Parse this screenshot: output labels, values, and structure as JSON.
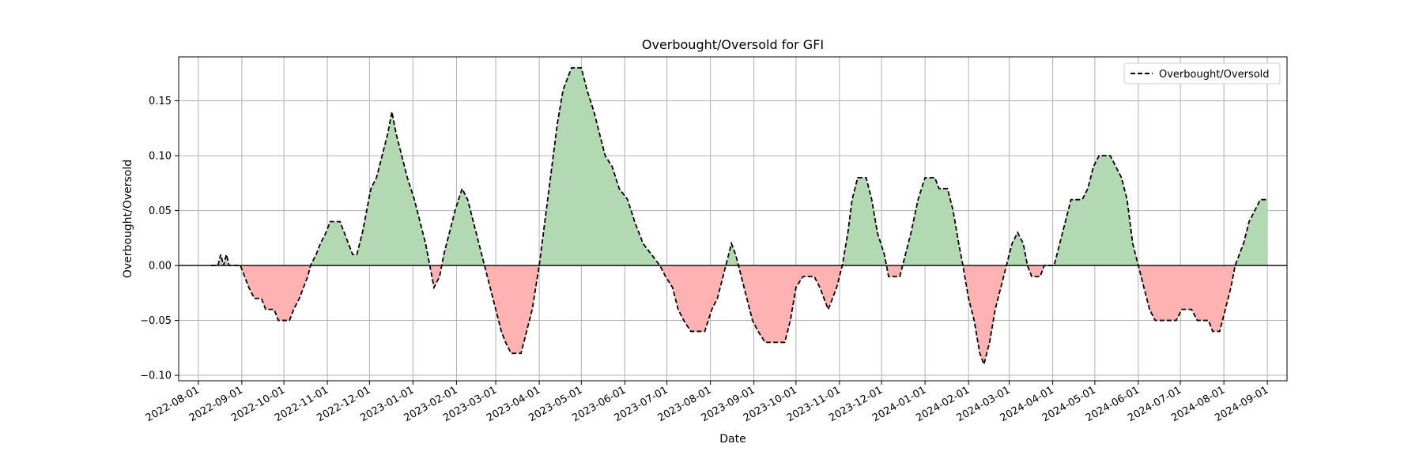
{
  "chart_data": {
    "type": "area",
    "title": "Overbought/Oversold for GFI",
    "xlabel": "Date",
    "ylabel": "Overbought/Oversold",
    "xlim": [
      "2022-07-18",
      "2024-09-15"
    ],
    "ylim": [
      -0.105,
      0.19
    ],
    "x_ticks": [
      "2022-08-01",
      "2022-09-01",
      "2022-10-01",
      "2022-11-01",
      "2022-12-01",
      "2023-01-01",
      "2023-02-01",
      "2023-03-01",
      "2023-04-01",
      "2023-05-01",
      "2023-06-01",
      "2023-07-01",
      "2023-08-01",
      "2023-09-01",
      "2023-10-01",
      "2023-11-01",
      "2023-12-01",
      "2024-01-01",
      "2024-02-01",
      "2024-03-01",
      "2024-04-01",
      "2024-05-01",
      "2024-06-01",
      "2024-07-01",
      "2024-08-01",
      "2024-09-01"
    ],
    "y_ticks": [
      -0.1,
      -0.05,
      0.0,
      0.05,
      0.1,
      0.15
    ],
    "y_tick_labels": [
      "−0.10",
      "−0.05",
      "0.00",
      "0.05",
      "0.10",
      "0.15"
    ],
    "grid": true,
    "legend": {
      "position": "top-right",
      "entries": [
        "Overbought/Oversold"
      ]
    },
    "colors": {
      "positive_fill": "#b2d9b2",
      "negative_fill": "#ffb2b2",
      "line": "#000000",
      "zero_line": "#000000",
      "grid": "#b0b0b0"
    },
    "series": [
      {
        "name": "Overbought/Oversold",
        "style": "dashed",
        "points": [
          [
            "2022-08-10",
            0.0
          ],
          [
            "2022-08-15",
            0.0
          ],
          [
            "2022-08-17",
            0.01
          ],
          [
            "2022-08-19",
            0.0
          ],
          [
            "2022-08-21",
            0.01
          ],
          [
            "2022-08-23",
            0.0
          ],
          [
            "2022-08-31",
            0.0
          ],
          [
            "2022-09-03",
            -0.01
          ],
          [
            "2022-09-06",
            -0.02
          ],
          [
            "2022-09-10",
            -0.03
          ],
          [
            "2022-09-15",
            -0.03
          ],
          [
            "2022-09-18",
            -0.04
          ],
          [
            "2022-09-24",
            -0.04
          ],
          [
            "2022-09-27",
            -0.05
          ],
          [
            "2022-10-05",
            -0.05
          ],
          [
            "2022-10-08",
            -0.04
          ],
          [
            "2022-10-12",
            -0.03
          ],
          [
            "2022-10-15",
            -0.02
          ],
          [
            "2022-10-18",
            -0.01
          ],
          [
            "2022-10-20",
            0.0
          ],
          [
            "2022-10-24",
            0.01
          ],
          [
            "2022-10-27",
            0.02
          ],
          [
            "2022-10-31",
            0.03
          ],
          [
            "2022-11-03",
            0.04
          ],
          [
            "2022-11-10",
            0.04
          ],
          [
            "2022-11-13",
            0.03
          ],
          [
            "2022-11-16",
            0.02
          ],
          [
            "2022-11-19",
            0.01
          ],
          [
            "2022-11-22",
            0.01
          ],
          [
            "2022-11-26",
            0.03
          ],
          [
            "2022-11-29",
            0.05
          ],
          [
            "2022-12-02",
            0.07
          ],
          [
            "2022-12-06",
            0.08
          ],
          [
            "2022-12-10",
            0.1
          ],
          [
            "2022-12-14",
            0.12
          ],
          [
            "2022-12-17",
            0.14
          ],
          [
            "2022-12-20",
            0.12
          ],
          [
            "2022-12-24",
            0.1
          ],
          [
            "2022-12-28",
            0.08
          ],
          [
            "2023-01-02",
            0.06
          ],
          [
            "2023-01-06",
            0.04
          ],
          [
            "2023-01-10",
            0.02
          ],
          [
            "2023-01-13",
            0.0
          ],
          [
            "2023-01-16",
            -0.02
          ],
          [
            "2023-01-20",
            -0.01
          ],
          [
            "2023-01-23",
            0.01
          ],
          [
            "2023-01-27",
            0.03
          ],
          [
            "2023-01-31",
            0.05
          ],
          [
            "2023-02-05",
            0.07
          ],
          [
            "2023-02-09",
            0.06
          ],
          [
            "2023-02-13",
            0.04
          ],
          [
            "2023-02-17",
            0.02
          ],
          [
            "2023-02-21",
            0.0
          ],
          [
            "2023-02-25",
            -0.02
          ],
          [
            "2023-03-01",
            -0.04
          ],
          [
            "2023-03-05",
            -0.06
          ],
          [
            "2023-03-08",
            -0.07
          ],
          [
            "2023-03-12",
            -0.08
          ],
          [
            "2023-03-19",
            -0.08
          ],
          [
            "2023-03-23",
            -0.06
          ],
          [
            "2023-03-27",
            -0.04
          ],
          [
            "2023-04-01",
            0.0
          ],
          [
            "2023-04-05",
            0.04
          ],
          [
            "2023-04-09",
            0.08
          ],
          [
            "2023-04-14",
            0.13
          ],
          [
            "2023-04-18",
            0.16
          ],
          [
            "2023-04-21",
            0.17
          ],
          [
            "2023-04-24",
            0.18
          ],
          [
            "2023-05-01",
            0.18
          ],
          [
            "2023-05-05",
            0.16
          ],
          [
            "2023-05-10",
            0.14
          ],
          [
            "2023-05-14",
            0.12
          ],
          [
            "2023-05-18",
            0.1
          ],
          [
            "2023-05-23",
            0.09
          ],
          [
            "2023-05-28",
            0.07
          ],
          [
            "2023-06-03",
            0.06
          ],
          [
            "2023-06-08",
            0.04
          ],
          [
            "2023-06-11",
            0.03
          ],
          [
            "2023-06-14",
            0.02
          ],
          [
            "2023-06-20",
            0.01
          ],
          [
            "2023-06-26",
            0.0
          ],
          [
            "2023-06-30",
            -0.01
          ],
          [
            "2023-07-05",
            -0.02
          ],
          [
            "2023-07-09",
            -0.04
          ],
          [
            "2023-07-13",
            -0.05
          ],
          [
            "2023-07-18",
            -0.06
          ],
          [
            "2023-07-28",
            -0.06
          ],
          [
            "2023-08-02",
            -0.04
          ],
          [
            "2023-08-06",
            -0.03
          ],
          [
            "2023-08-10",
            -0.01
          ],
          [
            "2023-08-14",
            0.01
          ],
          [
            "2023-08-16",
            0.02
          ],
          [
            "2023-08-19",
            0.01
          ],
          [
            "2023-08-23",
            -0.01
          ],
          [
            "2023-08-27",
            -0.03
          ],
          [
            "2023-08-31",
            -0.05
          ],
          [
            "2023-09-04",
            -0.06
          ],
          [
            "2023-09-09",
            -0.07
          ],
          [
            "2023-09-23",
            -0.07
          ],
          [
            "2023-09-27",
            -0.05
          ],
          [
            "2023-10-01",
            -0.02
          ],
          [
            "2023-10-06",
            -0.01
          ],
          [
            "2023-10-14",
            -0.01
          ],
          [
            "2023-10-18",
            -0.02
          ],
          [
            "2023-10-21",
            -0.03
          ],
          [
            "2023-10-24",
            -0.04
          ],
          [
            "2023-10-27",
            -0.03
          ],
          [
            "2023-10-30",
            -0.02
          ],
          [
            "2023-11-03",
            0.0
          ],
          [
            "2023-11-07",
            0.03
          ],
          [
            "2023-11-10",
            0.06
          ],
          [
            "2023-11-14",
            0.08
          ],
          [
            "2023-11-20",
            0.08
          ],
          [
            "2023-11-24",
            0.06
          ],
          [
            "2023-11-28",
            0.03
          ],
          [
            "2023-12-03",
            0.01
          ],
          [
            "2023-12-06",
            -0.01
          ],
          [
            "2023-12-14",
            -0.01
          ],
          [
            "2023-12-18",
            0.01
          ],
          [
            "2023-12-22",
            0.03
          ],
          [
            "2023-12-27",
            0.06
          ],
          [
            "2024-01-01",
            0.08
          ],
          [
            "2024-01-08",
            0.08
          ],
          [
            "2024-01-11",
            0.07
          ],
          [
            "2024-01-17",
            0.07
          ],
          [
            "2024-01-21",
            0.05
          ],
          [
            "2024-01-25",
            0.02
          ],
          [
            "2024-01-28",
            0.0
          ],
          [
            "2024-02-01",
            -0.03
          ],
          [
            "2024-02-05",
            -0.05
          ],
          [
            "2024-02-09",
            -0.08
          ],
          [
            "2024-02-12",
            -0.09
          ],
          [
            "2024-02-16",
            -0.07
          ],
          [
            "2024-02-20",
            -0.04
          ],
          [
            "2024-02-24",
            -0.02
          ],
          [
            "2024-02-28",
            0.0
          ],
          [
            "2024-03-03",
            0.02
          ],
          [
            "2024-03-07",
            0.03
          ],
          [
            "2024-03-11",
            0.02
          ],
          [
            "2024-03-14",
            0.0
          ],
          [
            "2024-03-17",
            -0.01
          ],
          [
            "2024-03-23",
            -0.01
          ],
          [
            "2024-03-26",
            0.0
          ],
          [
            "2024-04-02",
            0.0
          ],
          [
            "2024-04-06",
            0.02
          ],
          [
            "2024-04-10",
            0.04
          ],
          [
            "2024-04-14",
            0.06
          ],
          [
            "2024-04-22",
            0.06
          ],
          [
            "2024-04-26",
            0.07
          ],
          [
            "2024-04-30",
            0.09
          ],
          [
            "2024-05-04",
            0.1
          ],
          [
            "2024-05-12",
            0.1
          ],
          [
            "2024-05-16",
            0.09
          ],
          [
            "2024-05-20",
            0.08
          ],
          [
            "2024-05-24",
            0.06
          ],
          [
            "2024-05-28",
            0.02
          ],
          [
            "2024-06-01",
            0.0
          ],
          [
            "2024-06-05",
            -0.02
          ],
          [
            "2024-06-09",
            -0.04
          ],
          [
            "2024-06-13",
            -0.05
          ],
          [
            "2024-06-28",
            -0.05
          ],
          [
            "2024-07-02",
            -0.04
          ],
          [
            "2024-07-09",
            -0.04
          ],
          [
            "2024-07-13",
            -0.05
          ],
          [
            "2024-07-21",
            -0.05
          ],
          [
            "2024-07-24",
            -0.06
          ],
          [
            "2024-07-29",
            -0.06
          ],
          [
            "2024-08-02",
            -0.04
          ],
          [
            "2024-08-06",
            -0.02
          ],
          [
            "2024-08-09",
            0.0
          ],
          [
            "2024-08-12",
            0.01
          ],
          [
            "2024-08-15",
            0.02
          ],
          [
            "2024-08-19",
            0.04
          ],
          [
            "2024-08-23",
            0.05
          ],
          [
            "2024-08-27",
            0.06
          ],
          [
            "2024-09-01",
            0.06
          ]
        ]
      }
    ]
  }
}
